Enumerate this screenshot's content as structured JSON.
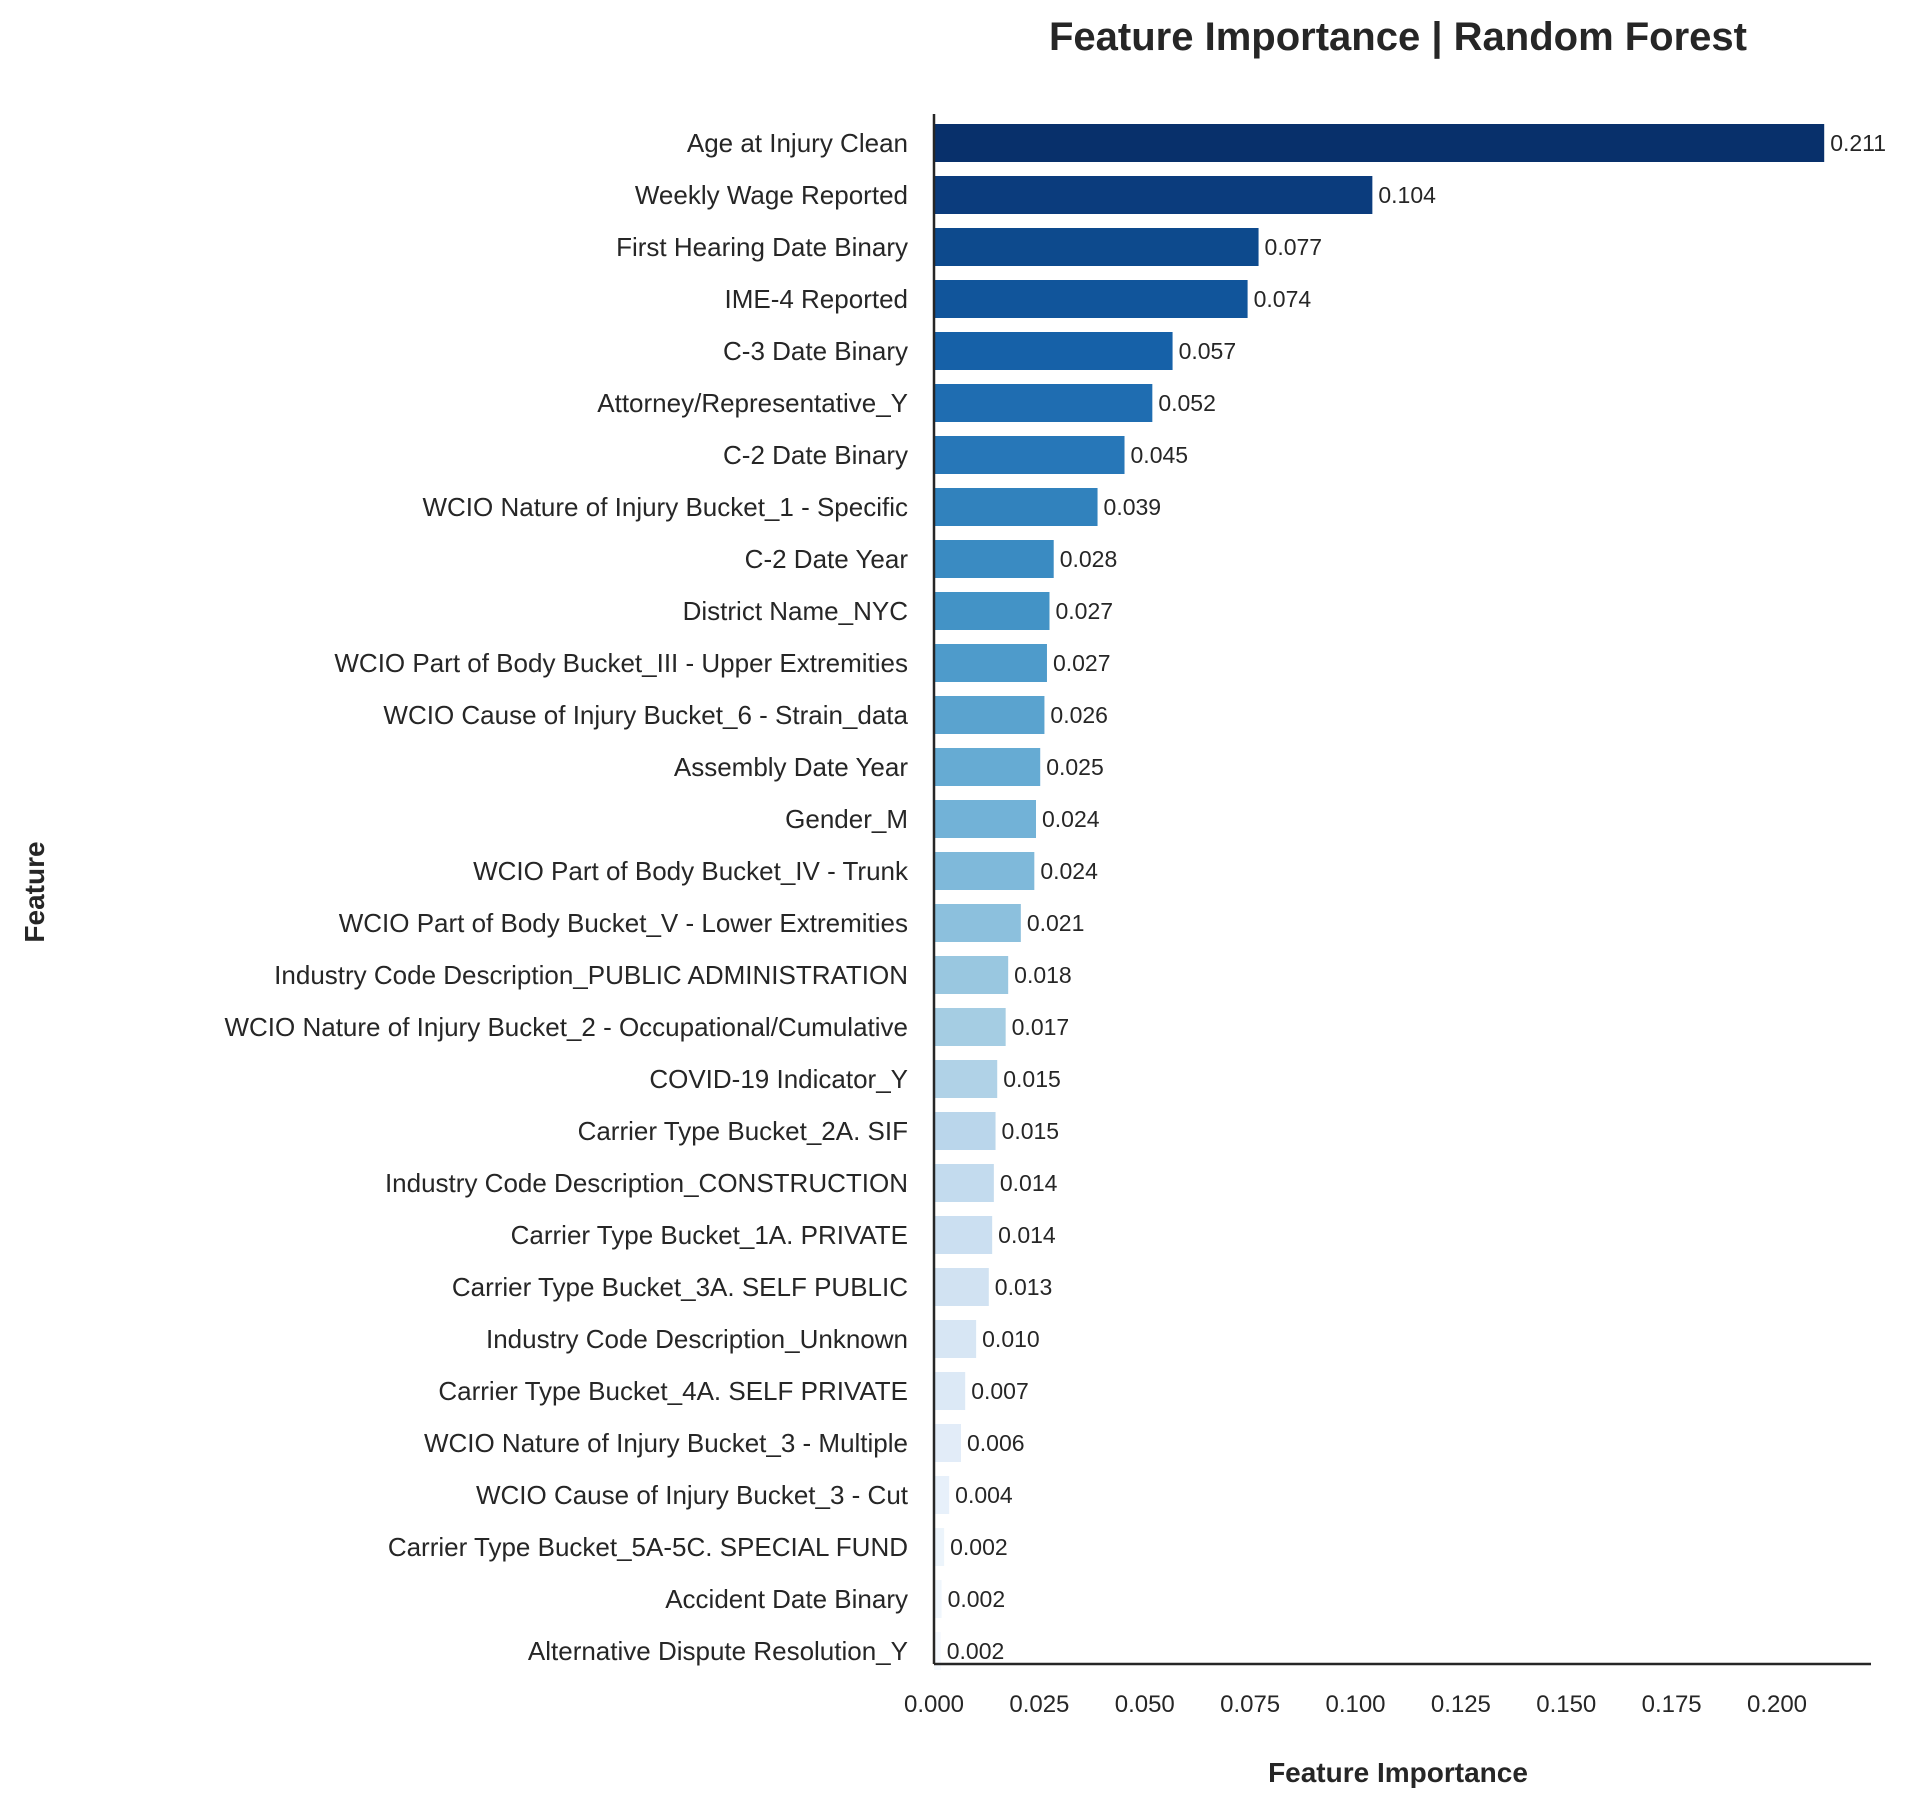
{
  "chart_data": {
    "type": "bar",
    "orientation": "horizontal",
    "title": "Feature Importance | Random Forest",
    "xlabel": "Feature Importance",
    "ylabel": "Feature",
    "xlim": [
      0,
      0.222
    ],
    "xticks": [
      "0.000",
      "0.025",
      "0.050",
      "0.075",
      "0.100",
      "0.125",
      "0.150",
      "0.175",
      "0.200"
    ],
    "xtick_values": [
      0,
      0.025,
      0.05,
      0.075,
      0.1,
      0.125,
      0.15,
      0.175,
      0.2
    ],
    "grid": false,
    "colormap": "Blues (dark to light)",
    "categories": [
      "Age at Injury Clean",
      "Weekly Wage Reported",
      "First Hearing Date Binary",
      "IME-4 Reported",
      "C-3 Date Binary",
      "Attorney/Representative_Y",
      "C-2 Date Binary",
      "WCIO Nature of Injury Bucket_1 - Specific",
      "C-2 Date Year",
      "District Name_NYC",
      "WCIO Part of Body Bucket_III - Upper Extremities",
      "WCIO Cause of Injury Bucket_6 - Strain_data",
      "Assembly Date Year",
      "Gender_M",
      "WCIO Part of Body Bucket_IV - Trunk",
      "WCIO Part of Body Bucket_V - Lower Extremities",
      "Industry Code Description_PUBLIC ADMINISTRATION",
      "WCIO Nature of Injury Bucket_2 - Occupational/Cumulative",
      "COVID-19 Indicator_Y",
      "Carrier Type Bucket_2A. SIF",
      "Industry Code Description_CONSTRUCTION",
      "Carrier Type Bucket_1A. PRIVATE",
      "Carrier Type Bucket_3A. SELF PUBLIC",
      "Industry Code Description_Unknown",
      "Carrier Type Bucket_4A. SELF PRIVATE",
      "WCIO Nature of Injury Bucket_3 - Multiple",
      "WCIO Cause of Injury Bucket_3 - Cut",
      "Carrier Type Bucket_5A-5C. SPECIAL FUND",
      "Accident Date Binary",
      "Alternative Dispute Resolution_Y"
    ],
    "values": [
      0.2112,
      0.104,
      0.077,
      0.0744,
      0.0566,
      0.0518,
      0.0452,
      0.0388,
      0.0284,
      0.0274,
      0.0268,
      0.0262,
      0.0252,
      0.0242,
      0.0238,
      0.0206,
      0.0176,
      0.017,
      0.015,
      0.0146,
      0.0142,
      0.0138,
      0.013,
      0.01,
      0.0074,
      0.0064,
      0.0036,
      0.0024,
      0.0018,
      0.0016
    ],
    "value_labels": [
      "0.211",
      "0.104",
      "0.077",
      "0.074",
      "0.057",
      "0.052",
      "0.045",
      "0.039",
      "0.028",
      "0.027",
      "0.027",
      "0.026",
      "0.025",
      "0.024",
      "0.024",
      "0.021",
      "0.018",
      "0.017",
      "0.015",
      "0.015",
      "0.014",
      "0.014",
      "0.013",
      "0.010",
      "0.007",
      "0.006",
      "0.004",
      "0.002",
      "0.002",
      "0.002"
    ],
    "colors": [
      "#08306b",
      "#0b3c7d",
      "#0d4a8d",
      "#11559b",
      "#1661a8",
      "#1f6db1",
      "#2777b8",
      "#3182bd",
      "#3a8bc2",
      "#4393c6",
      "#4e9bcb",
      "#5aa3cf",
      "#66abd3",
      "#72b2d7",
      "#7fb9da",
      "#8cc0dd",
      "#99c7e0",
      "#a5cde3",
      "#b0d2e7",
      "#bad6eb",
      "#c3dbee",
      "#cbdff1",
      "#d1e2f2",
      "#d7e6f4",
      "#dce9f6",
      "#e2ecf8",
      "#e7f0fa",
      "#ecf4fb",
      "#f0f6fc",
      "#f5f9fe"
    ]
  }
}
